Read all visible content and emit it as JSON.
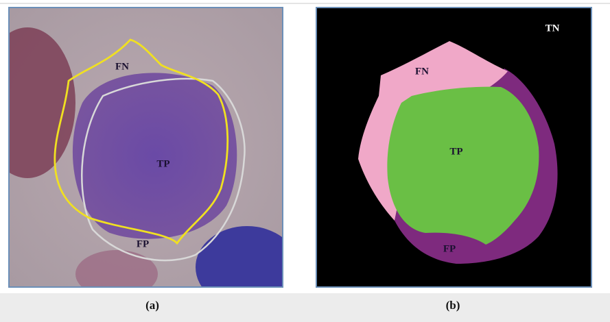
{
  "panels": [
    {
      "caption": "(a)",
      "labels": [
        "FN",
        "TP",
        "FP"
      ]
    },
    {
      "caption": "(b)",
      "labels": [
        "TN",
        "FN",
        "TP",
        "FP"
      ]
    }
  ]
}
